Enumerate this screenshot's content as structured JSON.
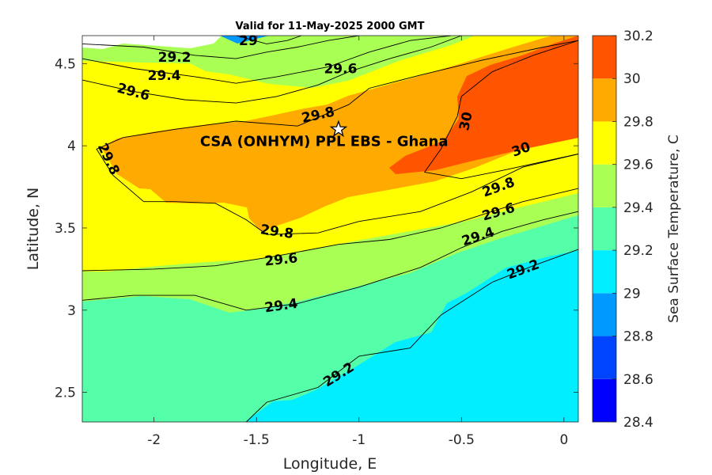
{
  "chart_data": {
    "type": "contour",
    "title": "Valid for 11-May-2025 2000 GMT",
    "xlabel": "Longitude, E",
    "ylabel": "Latitude, N",
    "xlim": [
      -2.35,
      0.07
    ],
    "ylim": [
      2.32,
      4.67
    ],
    "x_ticks": [
      -2,
      -1.5,
      -1,
      -0.5,
      0
    ],
    "x_tick_labels": [
      "-2",
      "-1.5",
      "-1",
      "-0.5",
      "0"
    ],
    "y_ticks": [
      2.5,
      3,
      3.5,
      4,
      4.5
    ],
    "y_tick_labels": [
      "2.5",
      "3",
      "3.5",
      "4",
      "4.5"
    ],
    "colorbar": {
      "label": "Sea Surface Temperature, C",
      "levels": [
        28.4,
        28.6,
        28.8,
        29.0,
        29.2,
        29.4,
        29.6,
        29.8,
        30.0,
        30.2
      ],
      "level_labels": [
        "28.4",
        "28.6",
        "28.8",
        "29",
        "29.2",
        "29.4",
        "29.6",
        "29.8",
        "30",
        "30.2"
      ],
      "colors": [
        "#0000ff",
        "#0044ff",
        "#0099ff",
        "#00eeff",
        "#55ffaa",
        "#aaff55",
        "#ffff00",
        "#ffaa00",
        "#ff5500"
      ]
    },
    "contours": [
      {
        "level": 29.2,
        "label": "29.2",
        "points": [
          [
            -1.55,
            2.32
          ],
          [
            -1.45,
            2.44
          ],
          [
            -1.2,
            2.53
          ],
          [
            -1.0,
            2.72
          ],
          [
            -0.75,
            2.77
          ],
          [
            -0.6,
            2.97
          ],
          [
            -0.5,
            3.05
          ],
          [
            -0.35,
            3.17
          ],
          [
            -0.15,
            3.27
          ],
          [
            0.07,
            3.37
          ]
        ]
      },
      {
        "level": 29.4,
        "label": "29.4",
        "points": [
          [
            -2.35,
            3.06
          ],
          [
            -2.1,
            3.09
          ],
          [
            -1.8,
            3.09
          ],
          [
            -1.55,
            3.0
          ],
          [
            -1.3,
            3.04
          ],
          [
            -1.0,
            3.14
          ],
          [
            -0.7,
            3.26
          ],
          [
            -0.5,
            3.38
          ],
          [
            -0.3,
            3.48
          ],
          [
            -0.1,
            3.55
          ],
          [
            0.07,
            3.6
          ]
        ]
      },
      {
        "level": 29.6,
        "label": "29.6",
        "points": [
          [
            -2.35,
            3.24
          ],
          [
            -2.0,
            3.25
          ],
          [
            -1.7,
            3.27
          ],
          [
            -1.4,
            3.33
          ],
          [
            -1.1,
            3.4
          ],
          [
            -0.85,
            3.43
          ],
          [
            -0.6,
            3.5
          ],
          [
            -0.4,
            3.58
          ],
          [
            -0.2,
            3.66
          ],
          [
            0.07,
            3.74
          ]
        ]
      },
      {
        "level": 29.8,
        "label": "29.8",
        "points": [
          [
            0.07,
            3.95
          ],
          [
            -0.2,
            3.87
          ],
          [
            -0.45,
            3.72
          ],
          [
            -0.7,
            3.6
          ],
          [
            -1.0,
            3.54
          ],
          [
            -1.2,
            3.47
          ],
          [
            -1.45,
            3.46
          ],
          [
            -1.55,
            3.55
          ],
          [
            -1.7,
            3.65
          ],
          [
            -1.9,
            3.66
          ],
          [
            -2.05,
            3.66
          ],
          [
            -2.2,
            3.82
          ],
          [
            -2.28,
            3.98
          ],
          [
            -2.15,
            4.05
          ],
          [
            -1.9,
            4.1
          ],
          [
            -1.6,
            4.15
          ],
          [
            -1.3,
            4.12
          ],
          [
            -1.05,
            4.25
          ],
          [
            -0.95,
            4.35
          ],
          [
            -0.7,
            4.43
          ],
          [
            -0.4,
            4.52
          ],
          [
            -0.1,
            4.6
          ],
          [
            0.07,
            4.64
          ]
        ]
      },
      {
        "level": 30.0,
        "label": "30",
        "points": [
          [
            0.07,
            3.95
          ],
          [
            -0.3,
            3.85
          ],
          [
            -0.5,
            3.8
          ],
          [
            -0.68,
            3.84
          ],
          [
            -0.6,
            3.98
          ],
          [
            -0.52,
            4.18
          ],
          [
            -0.5,
            4.3
          ],
          [
            -0.35,
            4.45
          ],
          [
            -0.15,
            4.55
          ],
          [
            0.07,
            4.64
          ]
        ]
      },
      {
        "level": 29.4,
        "label": "29.4",
        "points": [
          [
            -2.35,
            4.53
          ],
          [
            -2.1,
            4.47
          ],
          [
            -1.8,
            4.42
          ],
          [
            -1.6,
            4.38
          ],
          [
            -1.4,
            4.42
          ],
          [
            -1.15,
            4.48
          ],
          [
            -0.95,
            4.57
          ],
          [
            -0.75,
            4.64
          ],
          [
            -0.55,
            4.67
          ]
        ]
      },
      {
        "level": 29.6,
        "label": "29.6",
        "points": [
          [
            -2.35,
            4.4
          ],
          [
            -2.1,
            4.33
          ],
          [
            -1.85,
            4.28
          ],
          [
            -1.6,
            4.26
          ],
          [
            -1.4,
            4.3
          ],
          [
            -1.2,
            4.37
          ],
          [
            -1.05,
            4.45
          ],
          [
            -0.85,
            4.53
          ],
          [
            -0.65,
            4.6
          ],
          [
            -0.5,
            4.67
          ]
        ]
      },
      {
        "level": 29.2,
        "label": "29.2",
        "points": [
          [
            -2.35,
            4.62
          ],
          [
            -2.05,
            4.6
          ],
          [
            -1.8,
            4.55
          ],
          [
            -1.6,
            4.53
          ],
          [
            -1.45,
            4.57
          ],
          [
            -1.3,
            4.6
          ],
          [
            -1.15,
            4.64
          ],
          [
            -1.0,
            4.67
          ]
        ]
      },
      {
        "level": 29.0,
        "label": "29",
        "points": [
          [
            -1.6,
            4.67
          ],
          [
            -1.45,
            4.62
          ],
          [
            -1.35,
            4.64
          ],
          [
            -1.28,
            4.67
          ]
        ]
      }
    ],
    "contour_labels": [
      {
        "text": "29.2",
        "x": -1.1,
        "y": 2.61,
        "rotation": -32
      },
      {
        "text": "29.2",
        "x": -0.2,
        "y": 3.25,
        "rotation": -20
      },
      {
        "text": "29.4",
        "x": -1.38,
        "y": 3.03,
        "rotation": -8
      },
      {
        "text": "29.4",
        "x": -0.42,
        "y": 3.45,
        "rotation": -18
      },
      {
        "text": "29.6",
        "x": -1.38,
        "y": 3.31,
        "rotation": -6
      },
      {
        "text": "29.6",
        "x": -0.32,
        "y": 3.6,
        "rotation": -16
      },
      {
        "text": "29.8",
        "x": -1.4,
        "y": 3.48,
        "rotation": 8
      },
      {
        "text": "29.8",
        "x": -0.32,
        "y": 3.75,
        "rotation": -20
      },
      {
        "text": "29.8",
        "x": -2.22,
        "y": 3.92,
        "rotation": 65
      },
      {
        "text": "29.8",
        "x": -1.2,
        "y": 4.19,
        "rotation": -12
      },
      {
        "text": "30",
        "x": -0.21,
        "y": 3.98,
        "rotation": -20
      },
      {
        "text": "30",
        "x": -0.48,
        "y": 4.15,
        "rotation": -78
      },
      {
        "text": "29.6",
        "x": -1.09,
        "y": 4.47,
        "rotation": 0
      },
      {
        "text": "29.6",
        "x": -2.1,
        "y": 4.33,
        "rotation": 15
      },
      {
        "text": "29.4",
        "x": -1.95,
        "y": 4.43,
        "rotation": 0
      },
      {
        "text": "29.2",
        "x": -1.9,
        "y": 4.54,
        "rotation": 0
      },
      {
        "text": "29",
        "x": -1.54,
        "y": 4.64,
        "rotation": 0
      }
    ],
    "site": {
      "lon": -1.1,
      "lat": 4.1,
      "label": "CSA (ONHYM) PPL EBS  - Ghana"
    }
  }
}
